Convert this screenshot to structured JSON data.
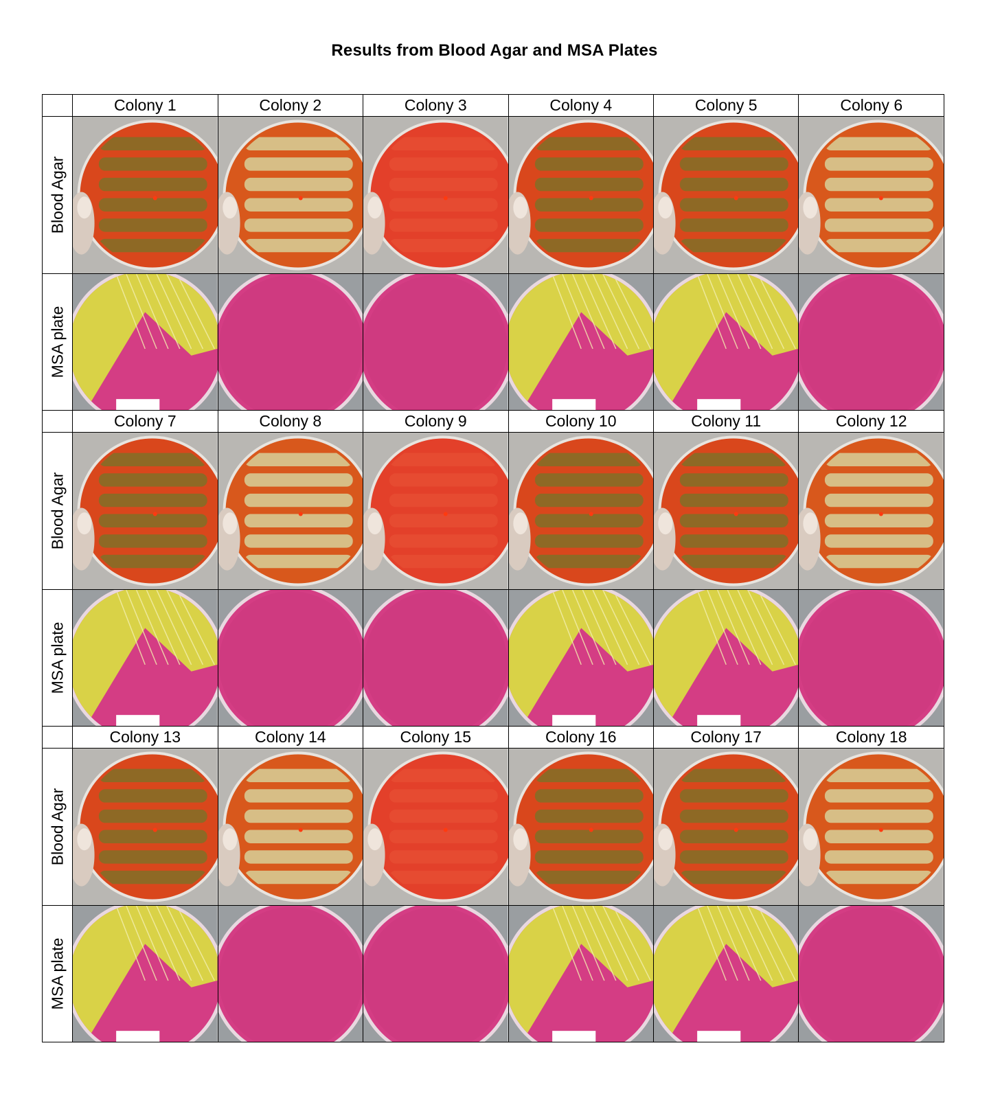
{
  "title": "Results from Blood Agar and MSA Plates",
  "row_labels": {
    "blood": "Blood Agar",
    "msa": "MSA plate"
  },
  "colors": {
    "blood_agar_red": "#d9471c",
    "blood_growth_olive": "#8a6b26",
    "blood_growth_cream": "#d7c48c",
    "msa_pink": "#d43d84",
    "msa_yellow": "#d9d247",
    "background_gray": "#9a9ea1"
  },
  "groups": [
    {
      "colonies": [
        {
          "label": "Colony 1",
          "blood": "olive",
          "msa": "yellow"
        },
        {
          "label": "Colony 2",
          "blood": "cream",
          "msa": "pink"
        },
        {
          "label": "Colony 3",
          "blood": "red",
          "msa": "pink"
        },
        {
          "label": "Colony 4",
          "blood": "olive",
          "msa": "yellow"
        },
        {
          "label": "Colony 5",
          "blood": "olive",
          "msa": "yellow"
        },
        {
          "label": "Colony 6",
          "blood": "cream",
          "msa": "pink"
        }
      ]
    },
    {
      "colonies": [
        {
          "label": "Colony 7",
          "blood": "olive",
          "msa": "yellow"
        },
        {
          "label": "Colony 8",
          "blood": "cream",
          "msa": "pink"
        },
        {
          "label": "Colony 9",
          "blood": "red",
          "msa": "pink"
        },
        {
          "label": "Colony 10",
          "blood": "olive",
          "msa": "yellow"
        },
        {
          "label": "Colony 11",
          "blood": "olive",
          "msa": "yellow"
        },
        {
          "label": "Colony 12",
          "blood": "cream",
          "msa": "pink"
        }
      ]
    },
    {
      "colonies": [
        {
          "label": "Colony 13",
          "blood": "olive",
          "msa": "yellow"
        },
        {
          "label": "Colony 14",
          "blood": "cream",
          "msa": "pink"
        },
        {
          "label": "Colony 15",
          "blood": "red",
          "msa": "pink"
        },
        {
          "label": "Colony 16",
          "blood": "olive",
          "msa": "yellow"
        },
        {
          "label": "Colony 17",
          "blood": "olive",
          "msa": "yellow"
        },
        {
          "label": "Colony 18",
          "blood": "cream",
          "msa": "pink"
        }
      ]
    }
  ]
}
